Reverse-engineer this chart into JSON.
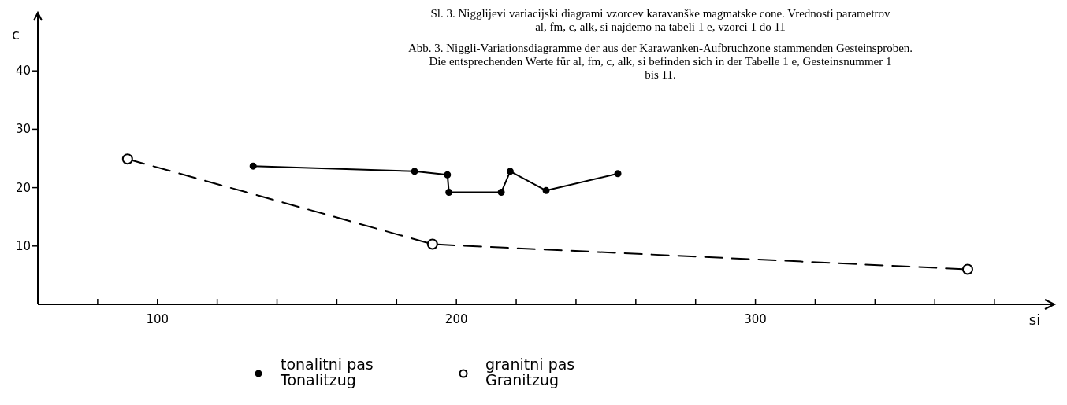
{
  "chart_data": {
    "type": "line",
    "title": "Sl. 3. Nigglijevi variacijski diagrami vzorcev karavanške magmatske cone. Vrednosti parametrov al, fm, c, alk, si najdemo na tabeli 1 e, vzorci 1 do 11",
    "subtitle": "Abb. 3. Niggli-Variationsdiagramme der aus der Karawanken-Aufbruchzone stammenden Gesteinsproben. Die entsprechenden Werte für al, fm, c, alk, si befinden sich in der Tabelle 1 e, Gesteinsnummer 1 bis 11.",
    "xlabel": "si",
    "ylabel": "c",
    "xlim": [
      60,
      400
    ],
    "ylim": [
      0,
      50
    ],
    "xticks": [
      {
        "value": 80,
        "label": null
      },
      100,
      {
        "value": 120,
        "label": null
      },
      {
        "value": 140,
        "label": null
      },
      {
        "value": 160,
        "label": null
      },
      {
        "value": 180,
        "label": null
      },
      200,
      {
        "value": 220,
        "label": null
      },
      {
        "value": 240,
        "label": null
      },
      {
        "value": 260,
        "label": null
      },
      {
        "value": 280,
        "label": null
      },
      300,
      {
        "value": 320,
        "label": null
      },
      {
        "value": 340,
        "label": null
      },
      {
        "value": 360,
        "label": null
      },
      {
        "value": 380,
        "label": null
      }
    ],
    "yticks": [
      10,
      20,
      30,
      40
    ],
    "grid": false,
    "legend": "bottom",
    "series": [
      {
        "name": "tonalitni pas\nTonalitzug",
        "color": "#000000",
        "marker": "circle",
        "line_style": "solid",
        "x": [
          132,
          186,
          197,
          197.5,
          215,
          218,
          230,
          254
        ],
        "values": [
          23.7,
          22.8,
          22.2,
          19.2,
          19.2,
          22.8,
          19.5,
          22.4
        ]
      },
      {
        "name": "granitni pas\nGranitzug",
        "color": "#000000",
        "marker": "circle",
        "line_style": "dashed",
        "x": [
          90,
          192,
          371
        ],
        "values": [
          24.9,
          10.3,
          6
        ]
      }
    ]
  }
}
